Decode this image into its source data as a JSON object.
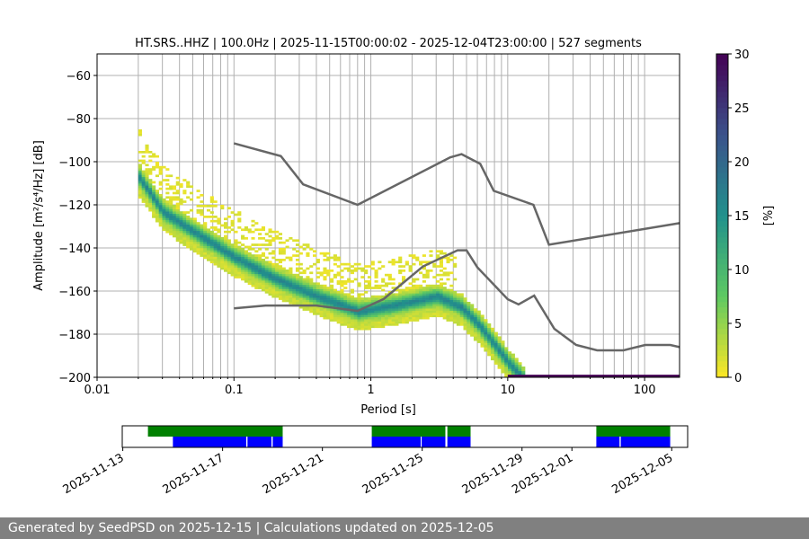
{
  "chart_data": {
    "type": "heatmap",
    "title": "HT.SRS..HHZ | 100.0Hz | 2025-11-15T00:00:02 - 2025-12-04T23:00:00 | 527 segments",
    "xlabel": "Period [s]",
    "ylabel": "Amplitude [m²/s⁴/Hz] [dB]",
    "xscale": "log",
    "xlim": [
      0.01,
      180
    ],
    "ylim": [
      -200,
      -50
    ],
    "xticks": [
      {
        "v": 0.01,
        "label": "0.01"
      },
      {
        "v": 0.1,
        "label": "0.1"
      },
      {
        "v": 1,
        "label": "1"
      },
      {
        "v": 10,
        "label": "10"
      },
      {
        "v": 100,
        "label": "100"
      }
    ],
    "yticks": [
      {
        "v": -60,
        "label": "−60"
      },
      {
        "v": -80,
        "label": "−80"
      },
      {
        "v": -100,
        "label": "−100"
      },
      {
        "v": -120,
        "label": "−120"
      },
      {
        "v": -140,
        "label": "−140"
      },
      {
        "v": -160,
        "label": "−160"
      },
      {
        "v": -180,
        "label": "−180"
      },
      {
        "v": -200,
        "label": "−200"
      }
    ],
    "grid": true,
    "mode_curve": [
      [
        0.02,
        -108
      ],
      [
        0.03,
        -124
      ],
      [
        0.05,
        -133
      ],
      [
        0.1,
        -145
      ],
      [
        0.2,
        -155
      ],
      [
        0.4,
        -163
      ],
      [
        0.8,
        -170
      ],
      [
        1.5,
        -167
      ],
      [
        3,
        -163
      ],
      [
        4.5,
        -168
      ],
      [
        6,
        -176
      ],
      [
        8,
        -186
      ],
      [
        10,
        -194
      ],
      [
        13,
        -202
      ]
    ],
    "nhnm": [
      [
        0.1,
        -91.5
      ],
      [
        0.22,
        -97.4
      ],
      [
        0.32,
        -110.5
      ],
      [
        0.8,
        -120
      ],
      [
        3.8,
        -98
      ],
      [
        4.6,
        -96.5
      ],
      [
        6.3,
        -101
      ],
      [
        7.9,
        -113.5
      ],
      [
        15.4,
        -120
      ],
      [
        20,
        -138.5
      ],
      [
        180,
        -128.5
      ]
    ],
    "nlnm": [
      [
        0.1,
        -168
      ],
      [
        0.17,
        -166.7
      ],
      [
        0.4,
        -166.7
      ],
      [
        0.8,
        -169.2
      ],
      [
        1.24,
        -163.7
      ],
      [
        2.4,
        -148.6
      ],
      [
        4.3,
        -141.1
      ],
      [
        5,
        -141.1
      ],
      [
        6,
        -149
      ],
      [
        10,
        -163.8
      ],
      [
        12,
        -166.2
      ],
      [
        15.6,
        -162.1
      ],
      [
        21.9,
        -177.5
      ],
      [
        31.6,
        -185
      ],
      [
        45,
        -187.5
      ],
      [
        70,
        -187.5
      ],
      [
        101,
        -185
      ],
      [
        154,
        -185
      ],
      [
        180,
        -186
      ]
    ],
    "colorbar": {
      "label": "[%]",
      "min": 0,
      "max": 30,
      "ticks": [
        "0",
        "5",
        "10",
        "15",
        "20",
        "25",
        "30"
      ]
    },
    "timeline": {
      "start_date": "2025-11-13",
      "days_span": 22.66,
      "tick_labels": [
        {
          "day": 0,
          "label": "2025-11-13"
        },
        {
          "day": 4,
          "label": "2025-11-17"
        },
        {
          "day": 8,
          "label": "2025-11-21"
        },
        {
          "day": 12,
          "label": "2025-11-25"
        },
        {
          "day": 16,
          "label": "2025-11-29"
        },
        {
          "day": 18,
          "label": "2025-12-01"
        },
        {
          "day": 22,
          "label": "2025-12-05"
        }
      ],
      "green_segments": [
        [
          1.03,
          6.43
        ],
        [
          10.0,
          12.95
        ],
        [
          13.03,
          13.96
        ],
        [
          19.0,
          21.96
        ]
      ],
      "blue_segments": [
        [
          2.03,
          4.97
        ],
        [
          5.02,
          5.98
        ],
        [
          6.03,
          6.43
        ],
        [
          10.0,
          11.96
        ],
        [
          12.0,
          12.95
        ],
        [
          13.03,
          13.96
        ],
        [
          19.0,
          19.93
        ],
        [
          19.98,
          21.96
        ]
      ]
    }
  },
  "footer": "Generated by SeedPSD on 2025-12-15 | Calculations updated on 2025-12-05"
}
